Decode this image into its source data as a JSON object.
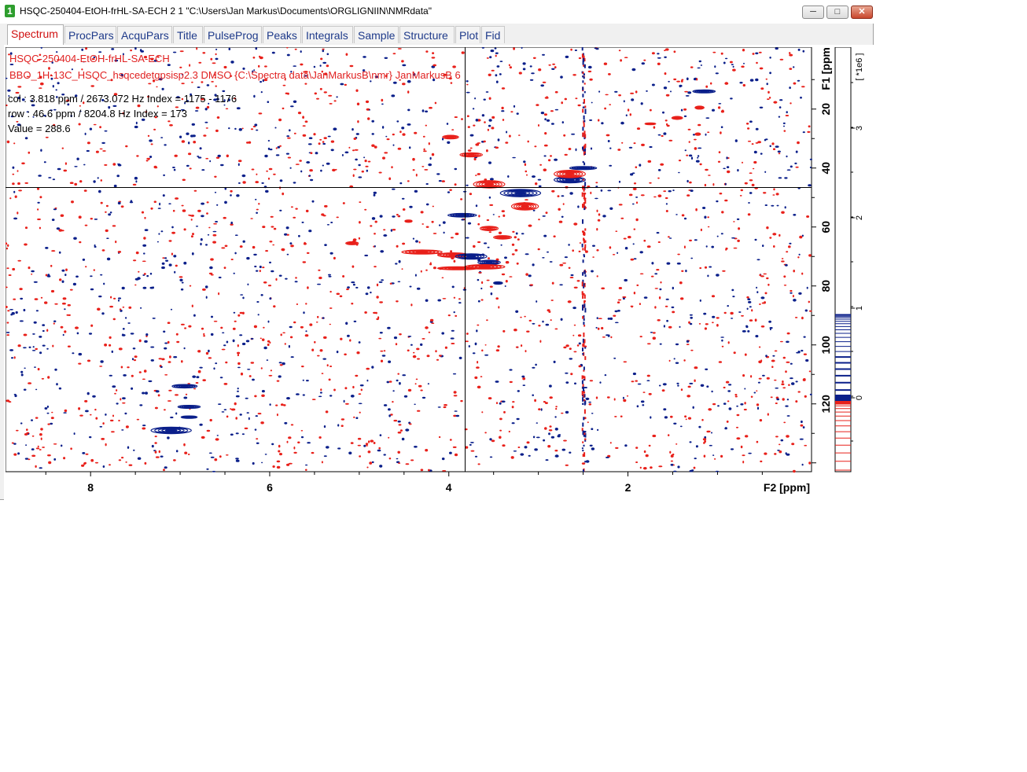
{
  "window": {
    "number": "1",
    "title": "HSQC-250404-EtOH-frHL-SA-ECH  2  1  \"C:\\Users\\Jan Markus\\Documents\\ORGLIGNIIN\\NMRdata\"",
    "minimize_icon": "minimize-icon",
    "maximize_icon": "maximize-icon",
    "close_icon": "close-icon"
  },
  "tabs": [
    "Spectrum",
    "ProcPars",
    "AcquPars",
    "Title",
    "PulseProg",
    "Peaks",
    "Integrals",
    "Sample",
    "Structure",
    "Plot",
    "Fid"
  ],
  "spectrum_info": {
    "title_line1": "HSQC-250404-EtOH-frHL-SA-ECH",
    "title_line2": "BBO_1H-13C_HSQC_hsqcedetgpsisp2.3 DMSO {C:\\Spectra data\\JanMarkusB\\nmr} JanMarkusB 6",
    "col": "col : 3.818 ppm / 2673.072 Hz Index = 1175 - 1176",
    "row": "row : 46.6 ppm / 8204.8 Hz Index = 173",
    "value": "Value = 288.6"
  },
  "colors": {
    "positive": "#e8201a",
    "negative": "#0a1f8a",
    "cursor": "#000000"
  },
  "chart_data": {
    "type": "heatmap",
    "xlabel": "F2 [ppm]",
    "ylabel": "F1 [ppm]",
    "xlim": [
      8.95,
      -0.05
    ],
    "ylim": [
      -1,
      143
    ],
    "x_ticks": [
      8,
      6,
      4,
      2
    ],
    "y_ticks": [
      20,
      40,
      60,
      80,
      100,
      120
    ],
    "cursor": {
      "x": 3.818,
      "y": 46.6
    },
    "peaks": [
      {
        "x": 3.98,
        "y": 29.5,
        "sign": "pos",
        "w": 0.18,
        "h": 1.2
      },
      {
        "x": 3.75,
        "y": 35.5,
        "sign": "pos",
        "w": 0.25,
        "h": 1.4
      },
      {
        "x": 3.55,
        "y": 45.5,
        "sign": "pos",
        "w": 0.35,
        "h": 2.5
      },
      {
        "x": 3.2,
        "y": 48.5,
        "sign": "neg",
        "w": 0.45,
        "h": 2.5
      },
      {
        "x": 3.15,
        "y": 53.0,
        "sign": "pos",
        "w": 0.3,
        "h": 2.5
      },
      {
        "x": 2.65,
        "y": 44.0,
        "sign": "neg",
        "w": 0.35,
        "h": 2.0
      },
      {
        "x": 2.65,
        "y": 42.0,
        "sign": "pos",
        "w": 0.35,
        "h": 2.5
      },
      {
        "x": 2.5,
        "y": 40.0,
        "sign": "neg",
        "w": 0.3,
        "h": 1.0
      },
      {
        "x": 3.85,
        "y": 56.0,
        "sign": "neg",
        "w": 0.32,
        "h": 1.2
      },
      {
        "x": 3.55,
        "y": 60.5,
        "sign": "pos",
        "w": 0.2,
        "h": 1.5
      },
      {
        "x": 3.4,
        "y": 63.5,
        "sign": "pos",
        "w": 0.2,
        "h": 1.2
      },
      {
        "x": 4.45,
        "y": 58.0,
        "sign": "pos",
        "w": 0.08,
        "h": 0.8
      },
      {
        "x": 5.08,
        "y": 65.5,
        "sign": "pos",
        "w": 0.14,
        "h": 1.0
      },
      {
        "x": 4.3,
        "y": 68.5,
        "sign": "pos",
        "w": 0.45,
        "h": 1.4
      },
      {
        "x": 3.95,
        "y": 69.5,
        "sign": "pos",
        "w": 0.35,
        "h": 1.5
      },
      {
        "x": 3.75,
        "y": 70.0,
        "sign": "neg",
        "w": 0.35,
        "h": 1.8
      },
      {
        "x": 3.55,
        "y": 72.0,
        "sign": "neg",
        "w": 0.25,
        "h": 1.5
      },
      {
        "x": 3.6,
        "y": 73.5,
        "sign": "pos",
        "w": 0.45,
        "h": 1.5
      },
      {
        "x": 3.9,
        "y": 74.0,
        "sign": "pos",
        "w": 0.45,
        "h": 1.0
      },
      {
        "x": 3.45,
        "y": 79.0,
        "sign": "neg",
        "w": 0.1,
        "h": 0.8
      },
      {
        "x": 1.15,
        "y": 14.0,
        "sign": "neg",
        "w": 0.25,
        "h": 1.0
      },
      {
        "x": 1.2,
        "y": 19.5,
        "sign": "pos",
        "w": 0.1,
        "h": 1.0
      },
      {
        "x": 1.45,
        "y": 23.0,
        "sign": "pos",
        "w": 0.12,
        "h": 1.0
      },
      {
        "x": 1.75,
        "y": 25.0,
        "sign": "pos",
        "w": 0.12,
        "h": 0.6
      },
      {
        "x": 1.22,
        "y": 28.5,
        "sign": "pos",
        "w": 0.06,
        "h": 0.8
      },
      {
        "x": 6.95,
        "y": 114.0,
        "sign": "neg",
        "w": 0.28,
        "h": 1.2
      },
      {
        "x": 6.9,
        "y": 121.0,
        "sign": "neg",
        "w": 0.25,
        "h": 1.0
      },
      {
        "x": 6.9,
        "y": 124.5,
        "sign": "neg",
        "w": 0.18,
        "h": 0.8
      },
      {
        "x": 7.1,
        "y": 129.0,
        "sign": "neg",
        "w": 0.45,
        "h": 2.2
      }
    ],
    "noise_ridge_x": 2.5,
    "colorbar": {
      "label": "[ *1e6 ]",
      "ticks": [
        3,
        2,
        1,
        0
      ]
    }
  }
}
